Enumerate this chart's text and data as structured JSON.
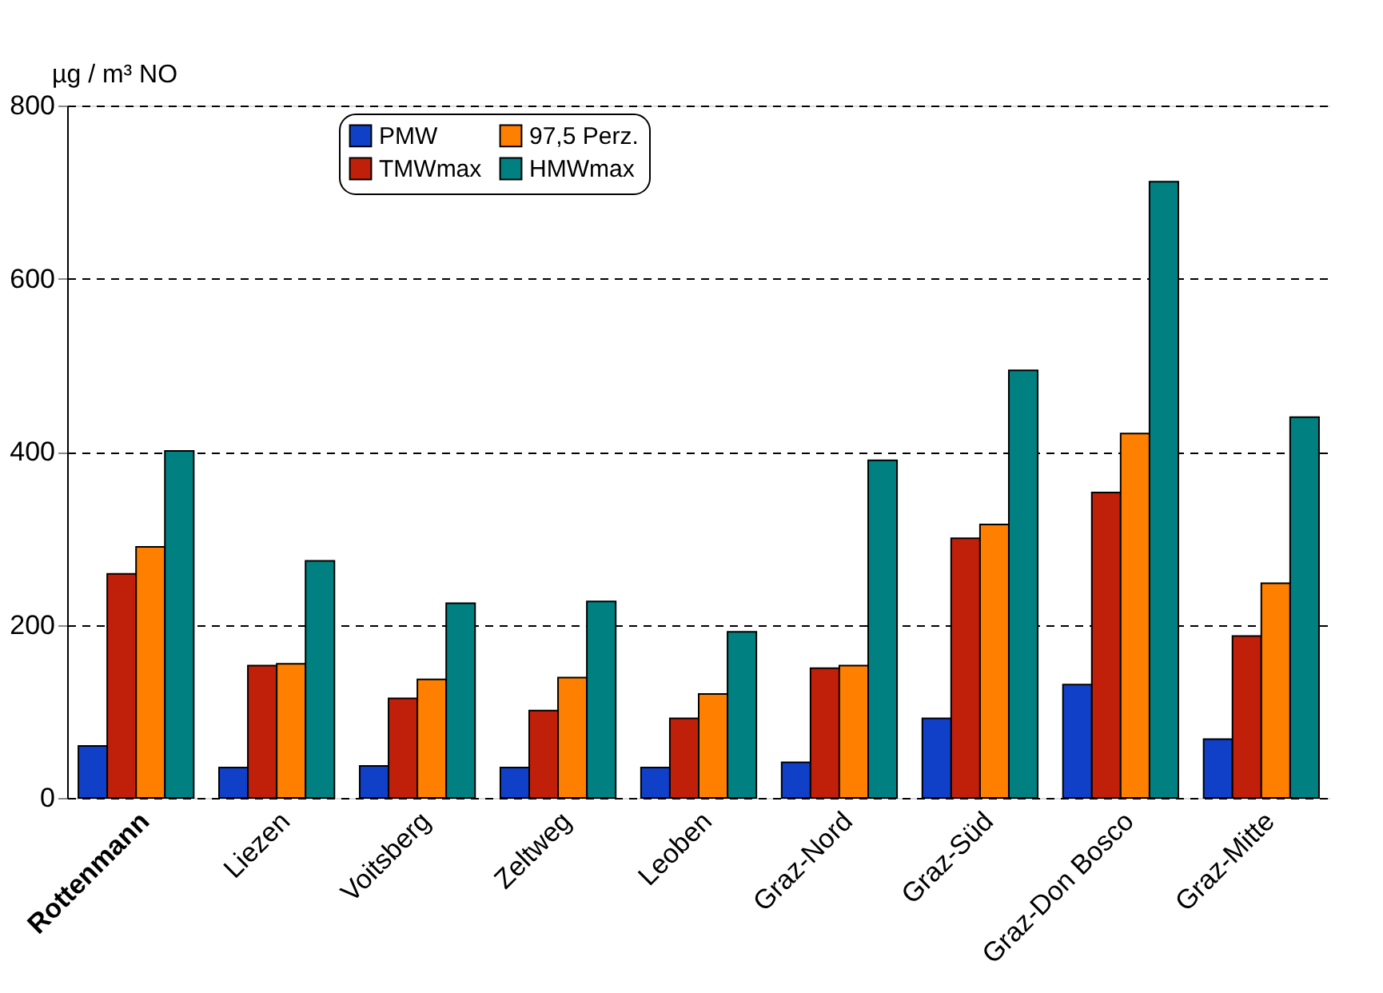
{
  "chart_data": {
    "type": "bar",
    "ylabel": "µg / m³ NO",
    "categories": [
      "Rottenmann",
      "Liezen",
      "Voitsberg",
      "Zeltweg",
      "Leoben",
      "Graz-Nord",
      "Graz-Süd",
      "Graz-Don Bosco",
      "Graz-Mitte"
    ],
    "series": [
      {
        "name": "PMW",
        "color": "#1040c8",
        "values": [
          60,
          35,
          37,
          35,
          35,
          41,
          92,
          131,
          68
        ]
      },
      {
        "name": "TMWmax",
        "color": "#c0200a",
        "values": [
          259,
          153,
          115,
          101,
          92,
          150,
          300,
          353,
          187
        ]
      },
      {
        "name": "97,5 Perz.",
        "color": "#ff8000",
        "values": [
          290,
          155,
          137,
          139,
          120,
          153,
          316,
          421,
          248
        ]
      },
      {
        "name": "HMWmax",
        "color": "#008080",
        "values": [
          401,
          274,
          225,
          227,
          192,
          390,
          494,
          712,
          440
        ]
      }
    ],
    "ylim": [
      0,
      800
    ],
    "yticks": [
      0,
      200,
      400,
      600,
      800
    ],
    "grid": "y",
    "legend": "top"
  }
}
